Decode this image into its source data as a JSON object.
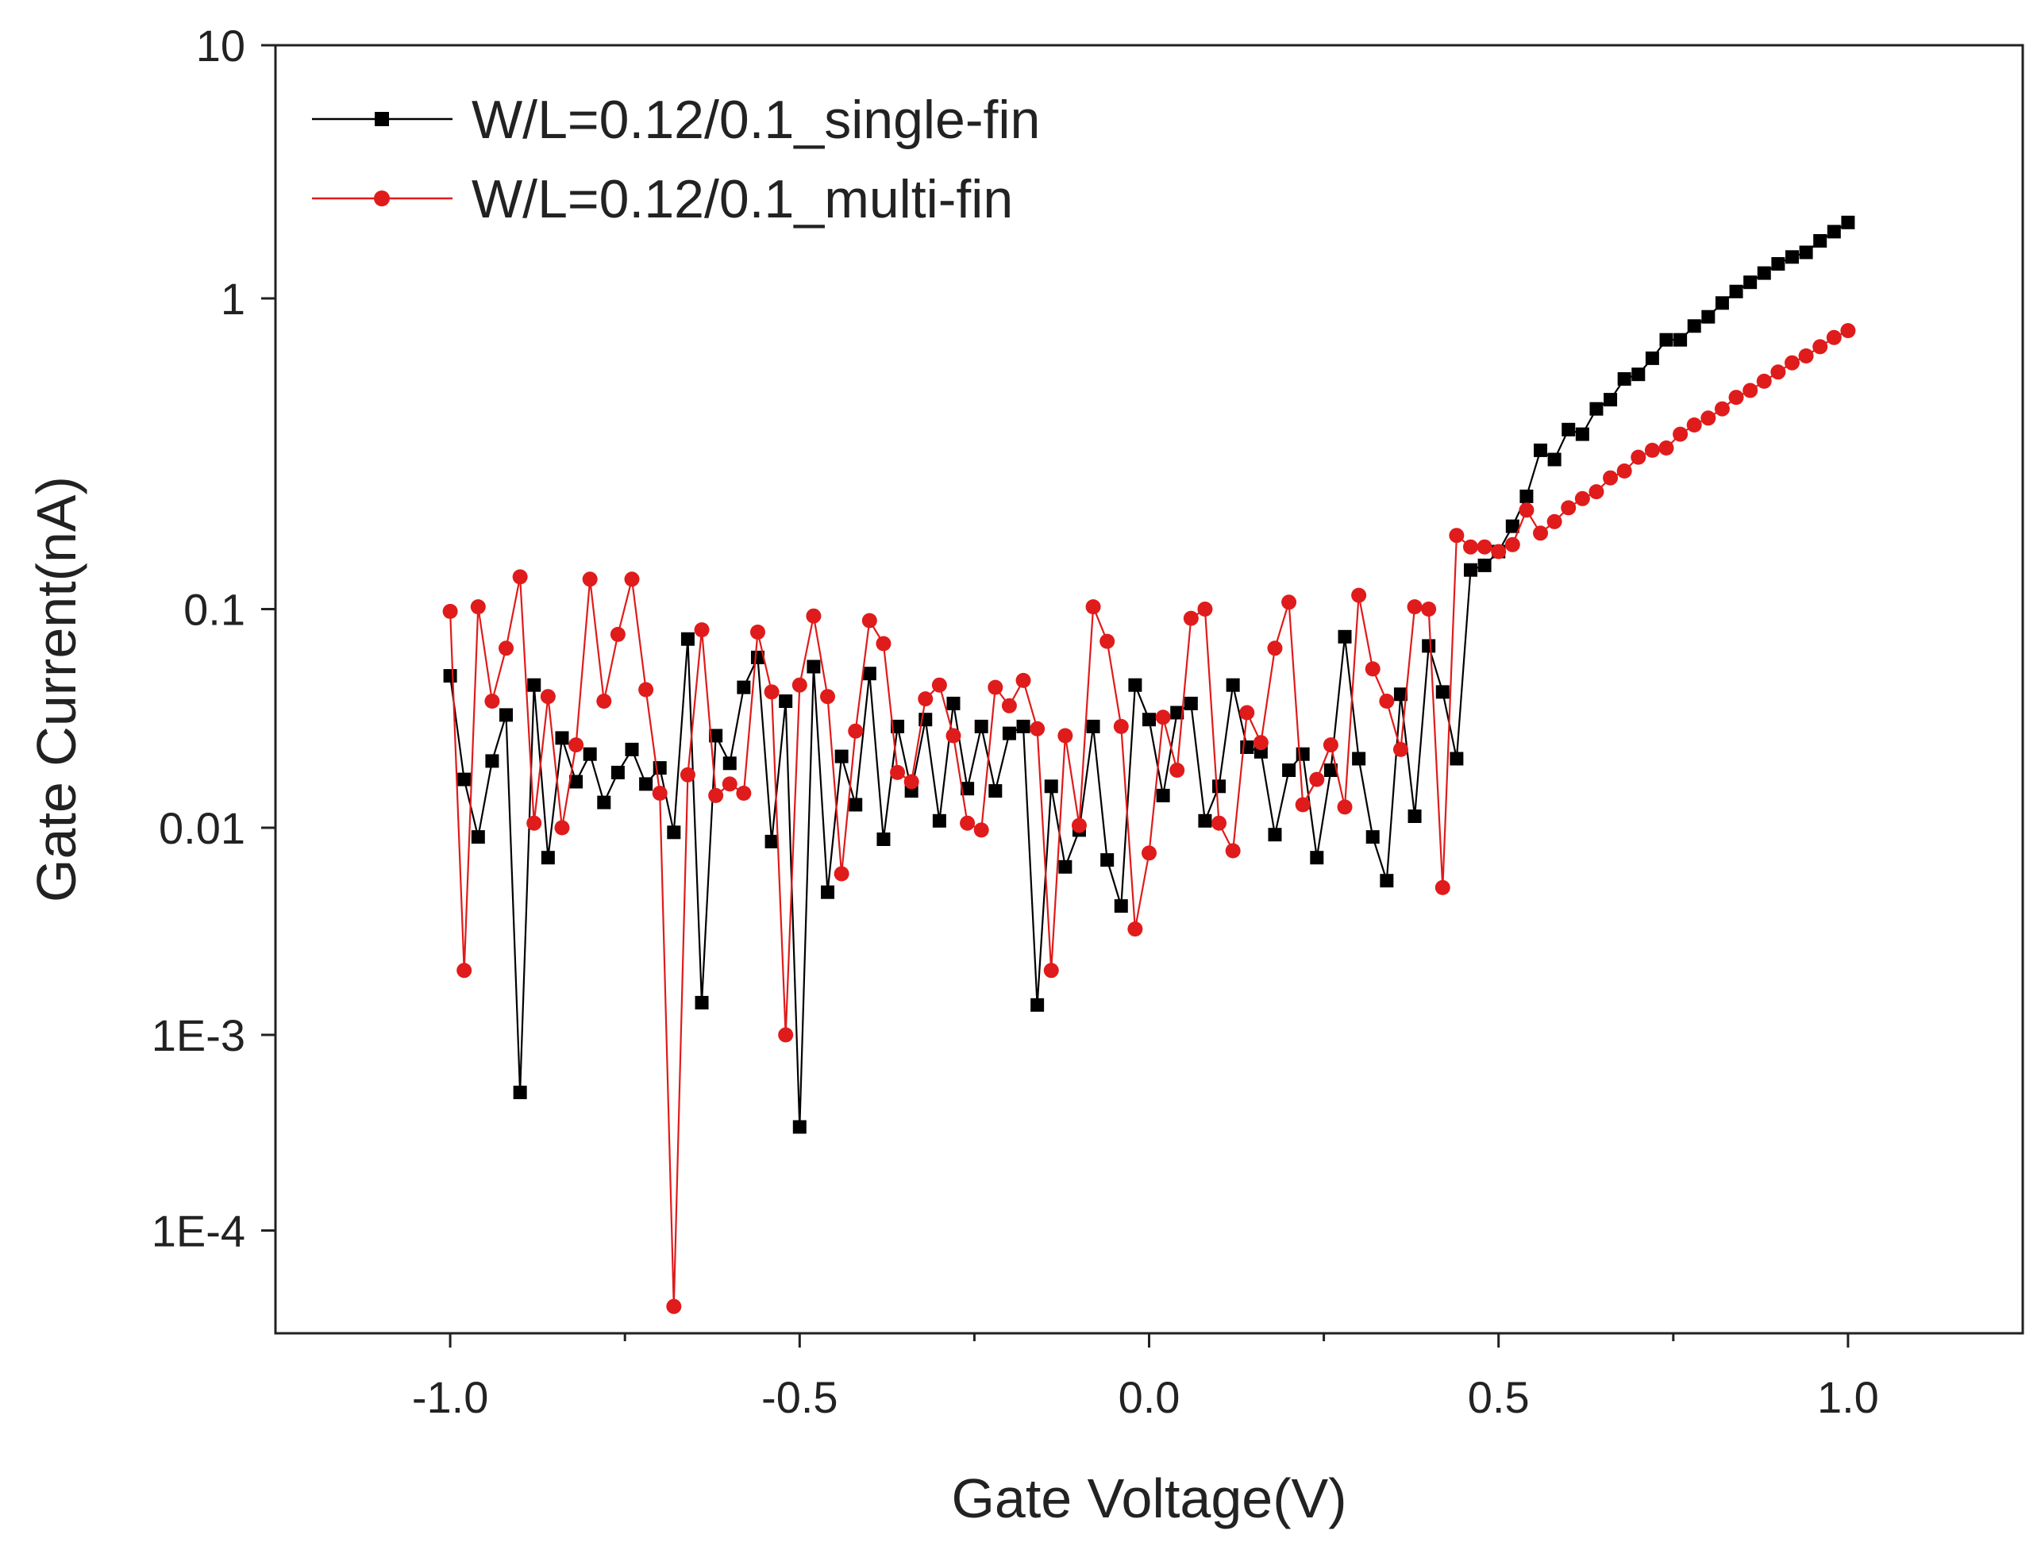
{
  "chart_data": {
    "type": "scatter",
    "xlabel": "Gate Voltage(V)",
    "ylabel": "Gate Current(nA)",
    "xlim": [
      -1.25,
      1.25
    ],
    "y_scale": "log",
    "x_ticks": [
      -1.0,
      -0.5,
      0.0,
      0.5,
      1.0
    ],
    "x_tick_labels": [
      "-1.0",
      "-0.5",
      "0.0",
      "0.5",
      "1.0"
    ],
    "y_ticks": [
      10,
      1,
      0.1,
      0.01,
      0.001,
      0.0001
    ],
    "y_tick_labels": [
      "10",
      "1",
      "0.1",
      "0.01",
      "1E-3",
      "1E-4"
    ],
    "y_tick_offsets": [
      0,
      1.1,
      2.45,
      3.4,
      4.3,
      5.15
    ],
    "y_range_offsets": [
      0,
      5.6
    ],
    "legend_position": "top-left",
    "series": [
      {
        "name": "W/L=0.12/0.1_single-fin",
        "color": "#000000",
        "marker": "square",
        "x": [
          -1.0,
          -0.98,
          -0.96,
          -0.94,
          -0.92,
          -0.9,
          -0.88,
          -0.86,
          -0.84,
          -0.82,
          -0.8,
          -0.78,
          -0.76,
          -0.74,
          -0.72,
          -0.7,
          -0.68,
          -0.66,
          -0.64,
          -0.62,
          -0.6,
          -0.58,
          -0.56,
          -0.54,
          -0.52,
          -0.5,
          -0.48,
          -0.46,
          -0.44,
          -0.42,
          -0.4,
          -0.38,
          -0.36,
          -0.34,
          -0.32,
          -0.3,
          -0.28,
          -0.26,
          -0.24,
          -0.22,
          -0.2,
          -0.18,
          -0.16,
          -0.14,
          -0.12,
          -0.1,
          -0.08,
          -0.06,
          -0.04,
          -0.02,
          0.0,
          0.02,
          0.04,
          0.06,
          0.08,
          0.1,
          0.12,
          0.14,
          0.16,
          0.18,
          0.2,
          0.22,
          0.24,
          0.26,
          0.28,
          0.3,
          0.32,
          0.34,
          0.36,
          0.38,
          0.4,
          0.42,
          0.44,
          0.46,
          0.48,
          0.5,
          0.52,
          0.54,
          0.56,
          0.58,
          0.6,
          0.62,
          0.64,
          0.66,
          0.68,
          0.7,
          0.72,
          0.74,
          0.76,
          0.78,
          0.8,
          0.82,
          0.84,
          0.86,
          0.88,
          0.9,
          0.92,
          0.94,
          0.96,
          0.98,
          1.0
        ],
        "y_offset": [
          2.74,
          3.19,
          3.44,
          3.11,
          2.91,
          4.55,
          2.78,
          3.53,
          3.01,
          3.2,
          3.08,
          3.29,
          3.16,
          3.06,
          3.21,
          3.14,
          3.42,
          2.58,
          4.16,
          3.0,
          3.12,
          2.79,
          2.66,
          3.46,
          2.85,
          4.7,
          2.7,
          3.68,
          3.09,
          3.3,
          2.73,
          3.45,
          2.96,
          3.24,
          2.93,
          3.37,
          2.86,
          3.23,
          2.96,
          3.24,
          2.99,
          2.96,
          4.17,
          3.22,
          3.57,
          3.41,
          2.96,
          3.54,
          3.74,
          2.78,
          2.93,
          3.26,
          2.9,
          2.86,
          3.37,
          3.22,
          2.78,
          3.05,
          3.07,
          3.43,
          3.15,
          3.08,
          3.53,
          3.15,
          2.57,
          3.1,
          3.44,
          3.63,
          2.82,
          3.35,
          2.61,
          2.81,
          3.1,
          2.28,
          2.26,
          2.2,
          2.09,
          1.96,
          1.76,
          1.8,
          1.67,
          1.69,
          1.58,
          1.54,
          1.45,
          1.43,
          1.36,
          1.28,
          1.28,
          1.22,
          1.18,
          1.12,
          1.07,
          1.03,
          0.99,
          0.95,
          0.92,
          0.9,
          0.85,
          0.81,
          0.77
        ]
      },
      {
        "name": "W/L=0.12/0.1_multi-fin",
        "color": "#e01b1b",
        "marker": "circle",
        "x": [
          -1.0,
          -0.98,
          -0.96,
          -0.94,
          -0.92,
          -0.9,
          -0.88,
          -0.86,
          -0.84,
          -0.82,
          -0.8,
          -0.78,
          -0.76,
          -0.74,
          -0.72,
          -0.7,
          -0.68,
          -0.66,
          -0.64,
          -0.62,
          -0.6,
          -0.58,
          -0.56,
          -0.54,
          -0.52,
          -0.5,
          -0.48,
          -0.46,
          -0.44,
          -0.42,
          -0.4,
          -0.38,
          -0.36,
          -0.34,
          -0.32,
          -0.3,
          -0.28,
          -0.26,
          -0.24,
          -0.22,
          -0.2,
          -0.18,
          -0.16,
          -0.14,
          -0.12,
          -0.1,
          -0.08,
          -0.06,
          -0.04,
          -0.02,
          0.0,
          0.02,
          0.04,
          0.06,
          0.08,
          0.1,
          0.12,
          0.14,
          0.16,
          0.18,
          0.2,
          0.22,
          0.24,
          0.26,
          0.28,
          0.3,
          0.32,
          0.34,
          0.36,
          0.38,
          0.4,
          0.42,
          0.44,
          0.46,
          0.48,
          0.5,
          0.52,
          0.54,
          0.56,
          0.58,
          0.6,
          0.62,
          0.64,
          0.66,
          0.68,
          0.7,
          0.72,
          0.74,
          0.76,
          0.78,
          0.8,
          0.82,
          0.84,
          0.86,
          0.88,
          0.9,
          0.92,
          0.94,
          0.96,
          0.98,
          1.0
        ],
        "y_offset": [
          2.46,
          4.02,
          2.44,
          2.85,
          2.62,
          2.31,
          3.38,
          2.83,
          3.4,
          3.04,
          2.32,
          2.85,
          2.56,
          2.32,
          2.8,
          3.25,
          5.48,
          3.17,
          2.54,
          3.26,
          3.21,
          3.25,
          2.55,
          2.81,
          4.3,
          2.78,
          2.48,
          2.83,
          3.6,
          2.98,
          2.5,
          2.6,
          3.16,
          3.2,
          2.84,
          2.78,
          3.0,
          3.38,
          3.41,
          2.79,
          2.87,
          2.76,
          2.97,
          4.02,
          3.0,
          3.39,
          2.44,
          2.59,
          2.96,
          3.84,
          3.51,
          2.92,
          3.15,
          2.49,
          2.45,
          3.38,
          3.5,
          2.9,
          3.03,
          2.62,
          2.42,
          3.3,
          3.19,
          3.04,
          3.31,
          2.39,
          2.71,
          2.85,
          3.06,
          2.44,
          2.45,
          3.66,
          2.13,
          2.18,
          2.18,
          2.2,
          2.17,
          2.02,
          2.12,
          2.07,
          2.01,
          1.97,
          1.94,
          1.88,
          1.85,
          1.79,
          1.76,
          1.75,
          1.69,
          1.65,
          1.62,
          1.58,
          1.53,
          1.5,
          1.46,
          1.42,
          1.38,
          1.35,
          1.31,
          1.27,
          1.24
        ]
      }
    ]
  }
}
